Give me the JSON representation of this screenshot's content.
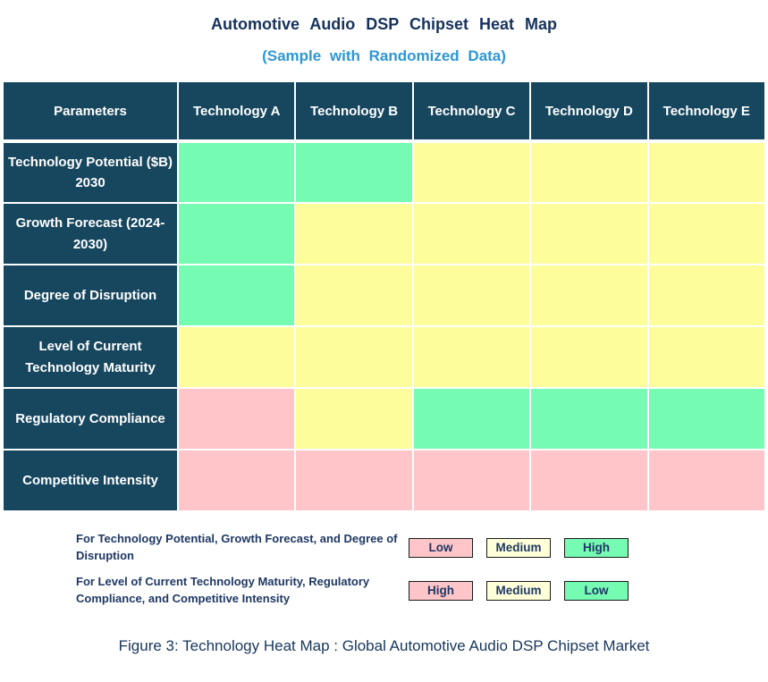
{
  "title": "Automotive Audio DSP Chipset Heat Map",
  "subtitle": "(Sample with Randomized Data)",
  "caption": "Figure 3: Technology Heat Map :  Global Automotive Audio DSP Chipset Market",
  "colors": {
    "header_bg": "#17475F",
    "title_navy": "#16325C",
    "subtitle_blue": "#2D96D5",
    "text_navy": "#1F3864",
    "caption_navy": "#17365D",
    "green": "#76FBB2",
    "yellow": "#FDFD9C",
    "pink": "#FFC5C8",
    "legend_yellow": "#FFFFD8"
  },
  "heatmap": {
    "columns": [
      "Parameters",
      "Technology A",
      "Technology B",
      "Technology C",
      "Technology D",
      "Technology E"
    ],
    "rows": [
      {
        "label": "Technology Potential ($B) 2030",
        "cells": [
          "green",
          "green",
          "yellow",
          "yellow",
          "yellow"
        ]
      },
      {
        "label": "Growth Forecast (2024-2030)",
        "cells": [
          "green",
          "yellow",
          "yellow",
          "yellow",
          "yellow"
        ]
      },
      {
        "label": "Degree of Disruption",
        "cells": [
          "green",
          "yellow",
          "yellow",
          "yellow",
          "yellow"
        ]
      },
      {
        "label": "Level of Current Technology Maturity",
        "cells": [
          "yellow",
          "yellow",
          "yellow",
          "yellow",
          "yellow"
        ]
      },
      {
        "label": "Regulatory Compliance",
        "cells": [
          "pink",
          "yellow",
          "green",
          "green",
          "green"
        ]
      },
      {
        "label": "Competitive Intensity",
        "cells": [
          "pink",
          "pink",
          "pink",
          "pink",
          "pink"
        ]
      }
    ]
  },
  "legend": {
    "entries": [
      {
        "description": "For Technology Potential, Growth Forecast, and Degree of Disruption",
        "boxes": [
          {
            "label": "Low",
            "color": "pink"
          },
          {
            "label": "Medium",
            "color": "legend_yellow"
          },
          {
            "label": "High",
            "color": "green"
          }
        ]
      },
      {
        "description": "For Level of Current Technology Maturity, Regulatory Compliance, and Competitive Intensity",
        "boxes": [
          {
            "label": "High",
            "color": "pink"
          },
          {
            "label": "Medium",
            "color": "legend_yellow"
          },
          {
            "label": "Low",
            "color": "green"
          }
        ]
      }
    ]
  },
  "chart_data": {
    "type": "heatmap",
    "title": "Automotive Audio DSP Chipset Heat Map",
    "subtitle": "(Sample with Randomized Data)",
    "columns": [
      "Technology A",
      "Technology B",
      "Technology C",
      "Technology D",
      "Technology E"
    ],
    "rows": [
      "Technology Potential ($B) 2030",
      "Growth Forecast (2024-2030)",
      "Degree of Disruption",
      "Level of Current Technology Maturity",
      "Regulatory Compliance",
      "Competitive Intensity"
    ],
    "values": [
      [
        "High",
        "High",
        "Medium",
        "Medium",
        "Medium"
      ],
      [
        "High",
        "Medium",
        "Medium",
        "Medium",
        "Medium"
      ],
      [
        "High",
        "Medium",
        "Medium",
        "Medium",
        "Medium"
      ],
      [
        "Medium",
        "Medium",
        "Medium",
        "Medium",
        "Medium"
      ],
      [
        "High",
        "Medium",
        "Low",
        "Low",
        "Low"
      ],
      [
        "High",
        "High",
        "High",
        "High",
        "High"
      ]
    ],
    "cell_colors": [
      [
        "green",
        "green",
        "yellow",
        "yellow",
        "yellow"
      ],
      [
        "green",
        "yellow",
        "yellow",
        "yellow",
        "yellow"
      ],
      [
        "green",
        "yellow",
        "yellow",
        "yellow",
        "yellow"
      ],
      [
        "yellow",
        "yellow",
        "yellow",
        "yellow",
        "yellow"
      ],
      [
        "pink",
        "yellow",
        "green",
        "green",
        "green"
      ],
      [
        "pink",
        "pink",
        "pink",
        "pink",
        "pink"
      ]
    ],
    "color_semantics": {
      "rows_1_to_3": {
        "green": "High",
        "yellow": "Medium",
        "pink": "Low"
      },
      "rows_4_to_6": {
        "pink": "High",
        "yellow": "Medium",
        "green": "Low"
      }
    },
    "legend_position": "bottom"
  }
}
